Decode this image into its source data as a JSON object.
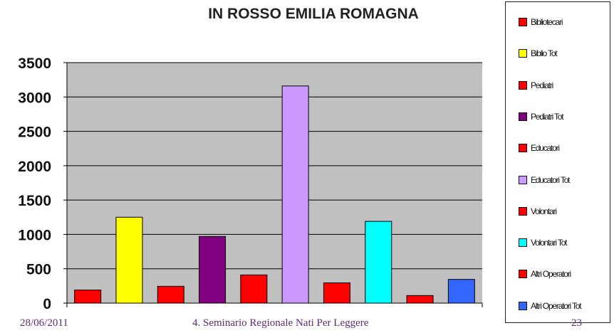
{
  "chart_data": {
    "type": "bar",
    "title": "IN ROSSO EMILIA ROMAGNA",
    "xlabel": "",
    "ylabel": "",
    "ylim": [
      0,
      3500
    ],
    "yticks": [
      "0",
      "500",
      "1000",
      "1500",
      "2000",
      "2500",
      "3000",
      "3500"
    ],
    "grid": true,
    "legend_position": "right",
    "categories": [
      "Bibliotecari",
      "Biblio Tot",
      "Pediatri",
      "Pediatri Tot",
      "Educatori",
      "Educatori Tot",
      "Volontari",
      "Volontari Tot",
      "Altri Operatori",
      "Altri Operatori Tot"
    ],
    "values": [
      190,
      1250,
      245,
      970,
      410,
      3160,
      295,
      1190,
      110,
      345
    ],
    "colors": [
      "#ff0000",
      "#ffff00",
      "#ff0000",
      "#800080",
      "#ff0000",
      "#cc99ff",
      "#ff0000",
      "#00ffff",
      "#ff0000",
      "#3366ff"
    ],
    "plot_background": "#c0c0c0"
  },
  "footer": {
    "date": "28/06/2011",
    "seminar": "4. Seminario Regionale Nati Per Leggere",
    "page": "23"
  }
}
